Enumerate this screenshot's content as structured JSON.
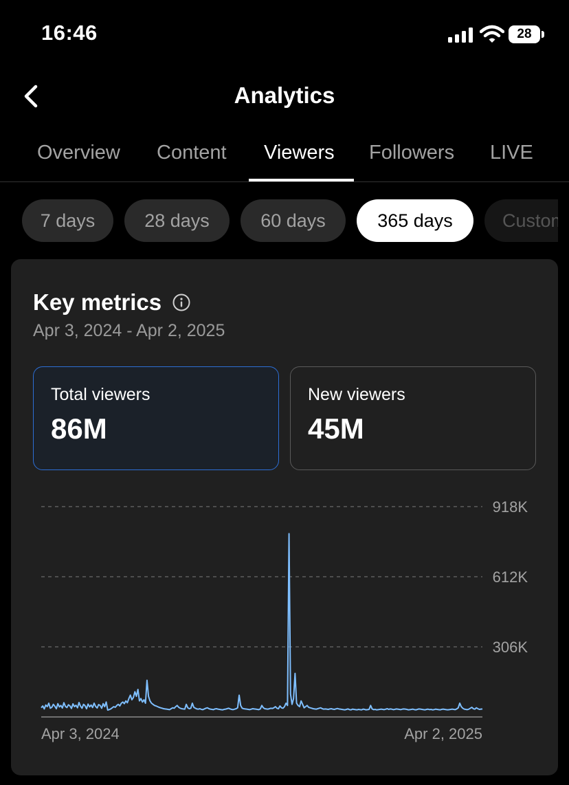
{
  "status_bar": {
    "time": "16:46",
    "battery": "28"
  },
  "header": {
    "title": "Analytics",
    "back_icon": "chevron-left-icon"
  },
  "tabs": [
    {
      "label": "Overview"
    },
    {
      "label": "Content"
    },
    {
      "label": "Viewers",
      "active": true
    },
    {
      "label": "Followers"
    },
    {
      "label": "LIVE"
    }
  ],
  "range_chips": [
    {
      "label": "7 days"
    },
    {
      "label": "28 days"
    },
    {
      "label": "60 days"
    },
    {
      "label": "365 days",
      "active": true
    },
    {
      "label": "Custom"
    }
  ],
  "key_metrics": {
    "title": "Key metrics",
    "date_range": "Apr 3, 2024 - Apr 2, 2025",
    "cards": [
      {
        "label": "Total viewers",
        "value": "86M",
        "selected": true
      },
      {
        "label": "New viewers",
        "value": "45M",
        "selected": false
      }
    ]
  },
  "colors": {
    "accent_blue": "#2d6fd6",
    "line_color": "#7fbfff"
  },
  "chart_data": {
    "type": "line",
    "x_start_label": "Apr 3, 2024",
    "x_end_label": "Apr 2, 2025",
    "y_tick_labels": [
      "306K",
      "612K",
      "918K"
    ],
    "y_ticks": [
      306000,
      612000,
      918000
    ],
    "ylim": [
      0,
      918000
    ],
    "grid": true,
    "series": [
      {
        "values": [
          40000,
          48000,
          35000,
          52000,
          45000,
          60000,
          38000,
          42000,
          55000,
          47000,
          36000,
          58000,
          44000,
          50000,
          39000,
          62000,
          46000,
          41000,
          53000,
          48000,
          37000,
          57000,
          45000,
          51000,
          40000,
          63000,
          47000,
          38000,
          55000,
          49000,
          36000,
          56000,
          44000,
          52000,
          41000,
          60000,
          46000,
          39000,
          54000,
          50000,
          38000,
          58000,
          45000,
          65000,
          30000,
          32000,
          35000,
          40000,
          45000,
          42000,
          50000,
          55000,
          48000,
          60000,
          65000,
          58000,
          70000,
          62000,
          80000,
          95000,
          75000,
          85000,
          110000,
          90000,
          120000,
          70000,
          80000,
          65000,
          75000,
          60000,
          160000,
          90000,
          70000,
          60000,
          55000,
          50000,
          48000,
          45000,
          42000,
          40000,
          38000,
          36000,
          35000,
          34000,
          33000,
          32000,
          36000,
          40000,
          38000,
          45000,
          50000,
          42000,
          38000,
          36000,
          35000,
          34000,
          55000,
          40000,
          36000,
          38000,
          60000,
          42000,
          38000,
          35000,
          34000,
          36000,
          33000,
          32000,
          35000,
          38000,
          40000,
          36000,
          34000,
          33000,
          32000,
          35000,
          36000,
          34000,
          33000,
          32000,
          31000,
          33000,
          34000,
          36000,
          38000,
          35000,
          33000,
          32000,
          34000,
          36000,
          40000,
          95000,
          50000,
          38000,
          36000,
          35000,
          34000,
          33000,
          32000,
          34000,
          36000,
          35000,
          34000,
          33000,
          32000,
          35000,
          50000,
          40000,
          36000,
          35000,
          34000,
          36000,
          38000,
          37000,
          40000,
          45000,
          38000,
          36000,
          48000,
          40000,
          38000,
          45000,
          60000,
          50000,
          800000,
          100000,
          55000,
          80000,
          190000,
          60000,
          50000,
          45000,
          70000,
          55000,
          40000,
          45000,
          50000,
          42000,
          40000,
          38000,
          36000,
          35000,
          34000,
          36000,
          38000,
          40000,
          36000,
          34000,
          35000,
          34000,
          33000,
          35000,
          36000,
          34000,
          33000,
          35000,
          37000,
          35000,
          34000,
          33000,
          32000,
          31000,
          33000,
          35000,
          32000,
          31000,
          34000,
          33000,
          32000,
          31000,
          33000,
          32000,
          31000,
          34000,
          33000,
          31000,
          32000,
          33000,
          50000,
          35000,
          32000,
          33000,
          31000,
          32000,
          33000,
          34000,
          33000,
          32000,
          34000,
          36000,
          33000,
          35000,
          34000,
          32000,
          33000,
          35000,
          34000,
          33000,
          32000,
          34000,
          35000,
          34000,
          33000,
          31000,
          32000,
          33000,
          34000,
          32000,
          31000,
          33000,
          35000,
          34000,
          33000,
          32000,
          31000,
          33000,
          34000,
          32000,
          33000,
          31000,
          32000,
          34000,
          33000,
          32000,
          31000,
          33000,
          34000,
          33000,
          32000,
          31000,
          32000,
          33000,
          34000,
          33000,
          32000,
          35000,
          40000,
          60000,
          45000,
          38000,
          34000,
          33000,
          32000,
          34000,
          38000,
          42000,
          36000,
          34000,
          40000,
          36000,
          33000,
          34000,
          35000
        ]
      }
    ]
  }
}
